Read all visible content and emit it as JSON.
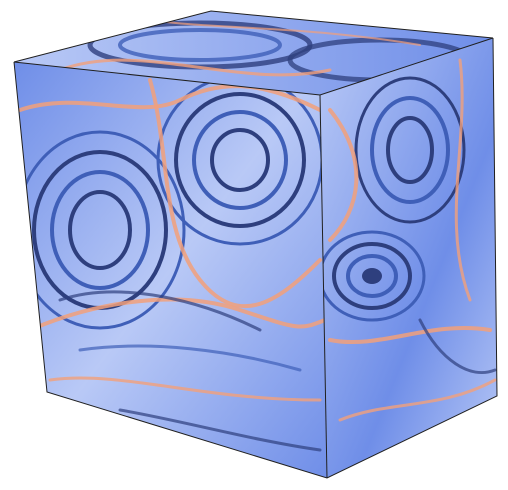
{
  "figure": {
    "subject": "cube-volume-rendering",
    "background_color": "#ffffff",
    "palette": {
      "base_blue": "#6f8ee8",
      "light_blue": "#b9c9f6",
      "deep_blue": "#3f5fb8",
      "navy_band": "#2e3f7e",
      "orange_highlight": "#f2a07a",
      "edge_line": "#202020"
    },
    "faces": [
      "top-face",
      "front-face",
      "right-face"
    ]
  }
}
